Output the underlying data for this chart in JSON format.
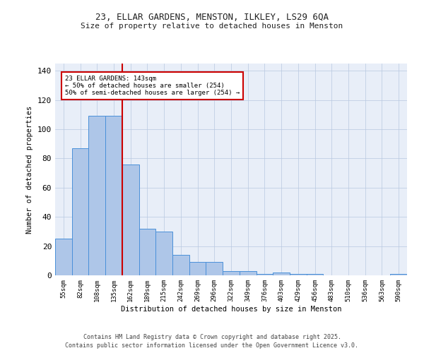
{
  "title1": "23, ELLAR GARDENS, MENSTON, ILKLEY, LS29 6QA",
  "title2": "Size of property relative to detached houses in Menston",
  "xlabel": "Distribution of detached houses by size in Menston",
  "ylabel": "Number of detached properties",
  "categories": [
    "55sqm",
    "82sqm",
    "108sqm",
    "135sqm",
    "162sqm",
    "189sqm",
    "215sqm",
    "242sqm",
    "269sqm",
    "296sqm",
    "322sqm",
    "349sqm",
    "376sqm",
    "403sqm",
    "429sqm",
    "456sqm",
    "483sqm",
    "510sqm",
    "536sqm",
    "563sqm",
    "590sqm"
  ],
  "values": [
    25,
    87,
    109,
    109,
    76,
    32,
    30,
    14,
    9,
    9,
    3,
    3,
    1,
    2,
    1,
    1,
    0,
    0,
    0,
    0,
    1
  ],
  "bar_color": "#aec6e8",
  "bar_edge_color": "#4a90d9",
  "vline_x": 3.5,
  "vline_color": "#cc0000",
  "annotation_text": "23 ELLAR GARDENS: 143sqm\n← 50% of detached houses are smaller (254)\n50% of semi-detached houses are larger (254) →",
  "annotation_box_color": "#ffffff",
  "annotation_box_edge": "#cc0000",
  "ylim": [
    0,
    145
  ],
  "yticks": [
    0,
    20,
    40,
    60,
    80,
    100,
    120,
    140
  ],
  "background_color": "#e8eef8",
  "footer1": "Contains HM Land Registry data © Crown copyright and database right 2025.",
  "footer2": "Contains public sector information licensed under the Open Government Licence v3.0."
}
